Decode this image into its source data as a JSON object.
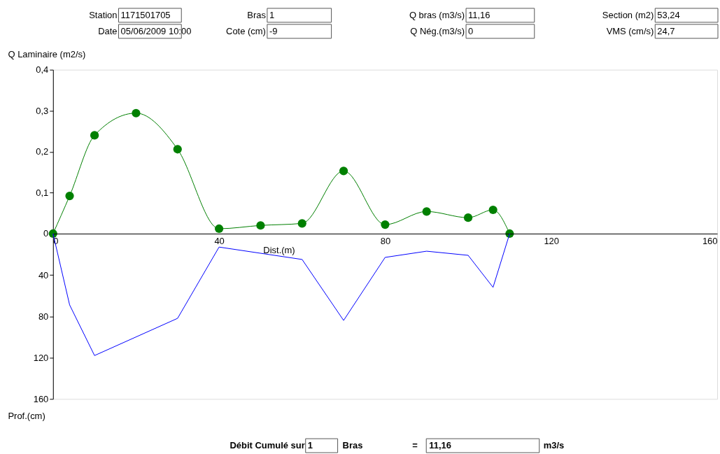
{
  "chart_data": [
    {
      "type": "line",
      "ylabel": "Q Laminaire (m2/s)",
      "tick_labels": "y",
      "xlim": [
        0,
        160
      ],
      "ylim": [
        0,
        0.4
      ],
      "yticks": [
        {
          "value": 0,
          "label": "0"
        },
        {
          "value": 0.1,
          "label": "0,1"
        },
        {
          "value": 0.2,
          "label": "0,2"
        },
        {
          "value": 0.3,
          "label": "0,3"
        },
        {
          "value": 0.4,
          "label": "0,4"
        }
      ],
      "grid": false,
      "series": [
        {
          "color": "#008000",
          "marker": "circle",
          "line_style": "solid",
          "x": [
            0,
            4,
            10,
            20,
            30,
            40,
            50,
            60,
            70,
            80,
            90,
            100,
            106,
            110
          ],
          "values": [
            0,
            0.092,
            0.24,
            0.294,
            0.206,
            0.012,
            0.02,
            0.025,
            0.153,
            0.022,
            0.054,
            0.039,
            0.058,
            0
          ]
        }
      ],
      "annotations": [
        "Station",
        "1171501705",
        "Date",
        "05/06/2009 10:00",
        "Bras",
        "1",
        "Cote (cm)",
        "-9",
        "Q bras (m3/s)",
        "11,16",
        "Q Nég.(m3/s)",
        "0",
        "Section (m2)",
        "53,24",
        "VMS (cm/s)",
        "24,7"
      ]
    },
    {
      "type": "line",
      "xlabel": "Dist.(m)",
      "ylabel": "Prof.(cm)",
      "xlim": [
        0,
        160
      ],
      "xticks": [
        0,
        40,
        80,
        120,
        160
      ],
      "ylim": [
        160,
        0
      ],
      "yticks": [
        40,
        80,
        120,
        160
      ],
      "grid": false,
      "series": [
        {
          "color": "#0000ff",
          "marker": "none",
          "line_style": "solid",
          "x": [
            0,
            4,
            10,
            30,
            40,
            60,
            70,
            80,
            90,
            100,
            106,
            110
          ],
          "values": [
            0,
            69,
            118,
            82,
            13,
            25,
            84,
            23,
            17,
            21,
            52,
            0
          ]
        }
      ],
      "annotations": [
        "Débit Cumulé sur",
        "1",
        "Bras",
        "=",
        "11,16",
        "m3/s"
      ]
    }
  ]
}
